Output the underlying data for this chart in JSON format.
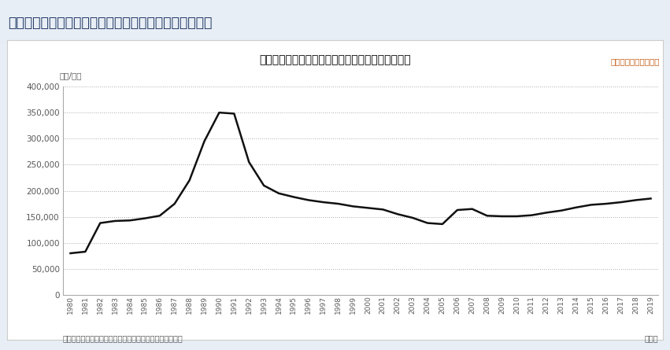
{
  "title": "名古屋市の地価公示（住宅地平均価格）の長期推移",
  "subtitle_left": "（円/㎡）",
  "subtitle_right": "（各年１月１日現在）",
  "note": "（注）国土交通省土地鑑定委員会地価公示データより作成",
  "note_right": "（年）",
  "header_title": "（参考）地価公示（住宅地平均価格）の長期推移グラフ",
  "years": [
    1980,
    1981,
    1982,
    1983,
    1984,
    1985,
    1986,
    1987,
    1988,
    1989,
    1990,
    1991,
    1992,
    1993,
    1994,
    1995,
    1996,
    1997,
    1998,
    1999,
    2000,
    2001,
    2002,
    2003,
    2004,
    2005,
    2006,
    2007,
    2008,
    2009,
    2010,
    2011,
    2012,
    2013,
    2014,
    2015,
    2016,
    2017,
    2018,
    2019
  ],
  "values": [
    80000,
    83000,
    138000,
    142000,
    143000,
    147000,
    152000,
    175000,
    220000,
    295000,
    350000,
    348000,
    255000,
    210000,
    195000,
    188000,
    182000,
    178000,
    175000,
    170000,
    167000,
    164000,
    155000,
    148000,
    138000,
    136000,
    163000,
    165000,
    152000,
    151000,
    151000,
    153000,
    158000,
    162000,
    168000,
    173000,
    175000,
    178000,
    182000,
    185000
  ],
  "ylim": [
    0,
    400000
  ],
  "yticks": [
    0,
    50000,
    100000,
    150000,
    200000,
    250000,
    300000,
    350000,
    400000
  ],
  "line_color": "#111111",
  "line_width": 1.8,
  "outer_bg": "#e8eef5",
  "chart_bg": "#ffffff",
  "chart_border": "#cccccc",
  "header_bg": "#dce6f1",
  "header_text_color": "#1f3864",
  "grid_color": "#aaaaaa",
  "title_color": "#000000",
  "subtitle_color": "#595959",
  "note_color": "#595959",
  "right_text_color": "#c55a11",
  "ytick_color": "#595959",
  "xtick_color": "#595959"
}
